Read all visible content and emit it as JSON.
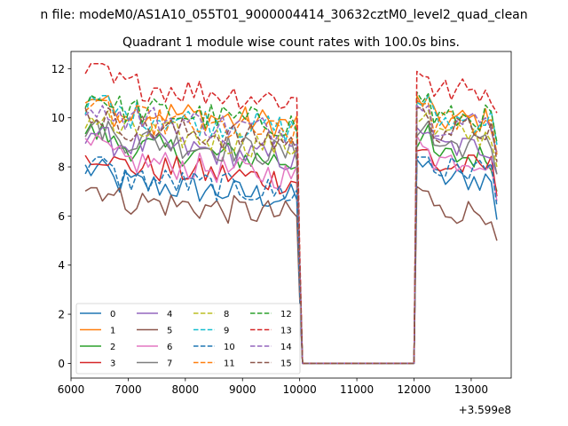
{
  "chart_data": {
    "type": "line",
    "suptitle": "n file: modeM0/AS1A10_055T01_9000004414_30632cztM0_level2_quad_clean",
    "title": "Quadrant 1 module wise count rates with 100.0s bins.",
    "xlabel": "",
    "ylabel": "",
    "x_offset_label": "+3.599e8",
    "xlim": [
      6000,
      13700
    ],
    "ylim": [
      -0.6,
      12.7
    ],
    "x_ticks": [
      6000,
      7000,
      8000,
      9000,
      10000,
      11000,
      12000,
      13000
    ],
    "x_tick_labels": [
      "6000",
      "7000",
      "8000",
      "9000",
      "10000",
      "11000",
      "12000",
      "13000"
    ],
    "y_ticks": [
      0,
      2,
      4,
      6,
      8,
      10,
      12
    ],
    "y_tick_labels": [
      "0",
      "2",
      "4",
      "6",
      "8",
      "10",
      "12"
    ],
    "grid": false,
    "legend_position": "lower-left",
    "legend_columns": 4,
    "x_start": 6250,
    "bin": 100,
    "segments": [
      {
        "from": 6250,
        "to": 9950,
        "phase": "before"
      },
      {
        "from": 12050,
        "to": 13450,
        "phase": "after"
      }
    ],
    "gap_value": 0,
    "series": [
      {
        "name": "0",
        "color": "#1f77b4",
        "dash": "solid",
        "level_before": 6.9,
        "level_after": 7.5,
        "min": 5.8,
        "max": 8.3
      },
      {
        "name": "1",
        "color": "#ff7f0e",
        "dash": "solid",
        "level_before": 9.9,
        "level_after": 9.9,
        "min": 8.6,
        "max": 10.9
      },
      {
        "name": "2",
        "color": "#2ca02c",
        "dash": "solid",
        "level_before": 8.4,
        "level_after": 8.4,
        "min": 7.0,
        "max": 9.9
      },
      {
        "name": "3",
        "color": "#d62728",
        "dash": "solid",
        "level_before": 7.6,
        "level_after": 8.0,
        "min": 6.8,
        "max": 8.7
      },
      {
        "name": "4",
        "color": "#9467bd",
        "dash": "solid",
        "level_before": 8.5,
        "level_after": 8.8,
        "min": 7.7,
        "max": 9.6
      },
      {
        "name": "5",
        "color": "#8c564b",
        "dash": "solid",
        "level_before": 6.2,
        "level_after": 6.2,
        "min": 5.0,
        "max": 7.2
      },
      {
        "name": "6",
        "color": "#e377c2",
        "dash": "solid",
        "level_before": 7.8,
        "level_after": 8.3,
        "min": 6.6,
        "max": 9.4
      },
      {
        "name": "7",
        "color": "#7f7f7f",
        "dash": "solid",
        "level_before": 8.7,
        "level_after": 8.9,
        "min": 7.7,
        "max": 9.9
      },
      {
        "name": "8",
        "color": "#bcbd22",
        "dash": "dashed",
        "level_before": 9.0,
        "level_after": 9.3,
        "min": 8.0,
        "max": 10.3
      },
      {
        "name": "9",
        "color": "#17becf",
        "dash": "dashed",
        "level_before": 9.7,
        "level_after": 9.9,
        "min": 8.9,
        "max": 10.9
      },
      {
        "name": "10",
        "color": "#1f77b4",
        "dash": "dashed",
        "level_before": 7.1,
        "level_after": 7.9,
        "min": 6.4,
        "max": 8.4
      },
      {
        "name": "11",
        "color": "#ff7f0e",
        "dash": "dashed",
        "level_before": 9.5,
        "level_after": 9.8,
        "min": 8.5,
        "max": 10.7
      },
      {
        "name": "12",
        "color": "#2ca02c",
        "dash": "dashed",
        "level_before": 9.9,
        "level_after": 10.0,
        "min": 9.0,
        "max": 11.3
      },
      {
        "name": "13",
        "color": "#d62728",
        "dash": "dashed",
        "level_before": 10.9,
        "level_after": 11.1,
        "min": 10.2,
        "max": 12.2
      },
      {
        "name": "14",
        "color": "#9467bd",
        "dash": "dashed",
        "level_before": 9.6,
        "level_after": 9.8,
        "min": 8.5,
        "max": 10.5
      },
      {
        "name": "15",
        "color": "#8c564b",
        "dash": "dashed",
        "level_before": 9.2,
        "level_after": 9.5,
        "min": 8.2,
        "max": 10.4
      }
    ]
  }
}
